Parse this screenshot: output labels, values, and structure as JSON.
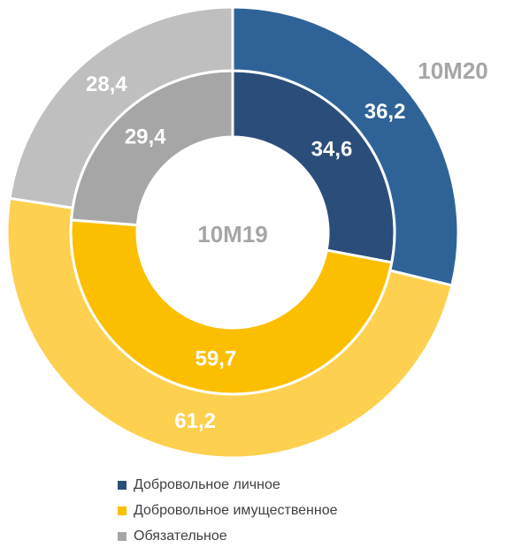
{
  "chart_data": {
    "type": "donut",
    "categories": [
      "Добровольное личное",
      "Добровольное имущественное",
      "Обязательное"
    ],
    "series": [
      {
        "name": "10M19",
        "colors": [
          "#2b4d7a",
          "#fcbf00",
          "#a6a6a6"
        ],
        "values": [
          34.6,
          59.7,
          29.4
        ],
        "value_labels": [
          "34,6",
          "59,7",
          "29,4"
        ]
      },
      {
        "name": "10M20",
        "colors": [
          "#2f6398",
          "#fdd04f",
          "#bfbfbf"
        ],
        "values": [
          36.2,
          61.2,
          28.4
        ],
        "value_labels": [
          "36,2",
          "61,2",
          "28,4"
        ]
      }
    ],
    "legend": "bottom"
  }
}
